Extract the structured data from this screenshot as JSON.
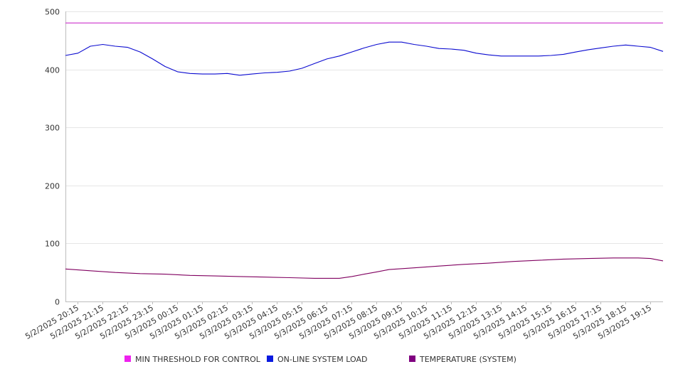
{
  "chart_data": {
    "type": "line",
    "title": "",
    "xlabel": "",
    "ylabel": "",
    "ylim": [
      0,
      500
    ],
    "y_ticks": [
      0,
      100,
      200,
      300,
      400,
      500
    ],
    "grid": "horizontal",
    "legend_position": "bottom",
    "x_tick_labels": [
      "5/2/2025 20:15",
      "5/2/2025 21:15",
      "5/2/2025 22:15",
      "5/2/2025 23:15",
      "5/3/2025 00:15",
      "5/3/2025 01:15",
      "5/3/2025 02:15",
      "5/3/2025 03:15",
      "5/3/2025 04:15",
      "5/3/2025 05:15",
      "5/3/2025 06:15",
      "5/3/2025 07:15",
      "5/3/2025 08:15",
      "5/3/2025 09:15",
      "5/3/2025 10:15",
      "5/3/2025 11:15",
      "5/3/2025 12:15",
      "5/3/2025 13:15",
      "5/3/2025 14:15",
      "5/3/2025 15:15",
      "5/3/2025 16:15",
      "5/3/2025 17:15",
      "5/3/2025 18:15",
      "5/3/2025 19:15"
    ],
    "x_range": [
      "5/2/2025 19:45",
      "5/3/2025 19:45"
    ],
    "series": [
      {
        "name": "MIN THRESHOLD FOR CONTROL",
        "color": "#cc33cc",
        "legend_color": "#ee22ee",
        "points": [
          [
            "5/2/2025 19:45",
            480
          ],
          [
            "5/3/2025 19:45",
            480
          ]
        ]
      },
      {
        "name": "ON-LINE SYSTEM LOAD",
        "color": "#0a0ad0",
        "legend_color": "#0a1ae0",
        "points": [
          [
            "5/2/2025 19:45",
            424
          ],
          [
            "5/2/2025 20:15",
            428
          ],
          [
            "5/2/2025 20:45",
            440
          ],
          [
            "5/2/2025 21:15",
            443
          ],
          [
            "5/2/2025 21:45",
            440
          ],
          [
            "5/2/2025 22:15",
            438
          ],
          [
            "5/2/2025 22:45",
            430
          ],
          [
            "5/2/2025 23:15",
            418
          ],
          [
            "5/2/2025 23:45",
            405
          ],
          [
            "5/3/2025 00:15",
            396
          ],
          [
            "5/3/2025 00:45",
            393
          ],
          [
            "5/3/2025 01:15",
            392
          ],
          [
            "5/3/2025 01:45",
            392
          ],
          [
            "5/3/2025 02:15",
            393
          ],
          [
            "5/3/2025 02:45",
            390
          ],
          [
            "5/3/2025 03:15",
            392
          ],
          [
            "5/3/2025 03:45",
            394
          ],
          [
            "5/3/2025 04:15",
            395
          ],
          [
            "5/3/2025 04:45",
            397
          ],
          [
            "5/3/2025 05:15",
            402
          ],
          [
            "5/3/2025 05:45",
            410
          ],
          [
            "5/3/2025 06:15",
            418
          ],
          [
            "5/3/2025 06:45",
            423
          ],
          [
            "5/3/2025 07:15",
            430
          ],
          [
            "5/3/2025 07:45",
            437
          ],
          [
            "5/3/2025 08:15",
            443
          ],
          [
            "5/3/2025 08:45",
            447
          ],
          [
            "5/3/2025 09:15",
            447
          ],
          [
            "5/3/2025 09:45",
            443
          ],
          [
            "5/3/2025 10:15",
            440
          ],
          [
            "5/3/2025 10:45",
            436
          ],
          [
            "5/3/2025 11:15",
            435
          ],
          [
            "5/3/2025 11:45",
            433
          ],
          [
            "5/3/2025 12:15",
            428
          ],
          [
            "5/3/2025 12:45",
            425
          ],
          [
            "5/3/2025 13:15",
            423
          ],
          [
            "5/3/2025 13:45",
            423
          ],
          [
            "5/3/2025 14:15",
            423
          ],
          [
            "5/3/2025 14:45",
            423
          ],
          [
            "5/3/2025 15:15",
            424
          ],
          [
            "5/3/2025 15:45",
            426
          ],
          [
            "5/3/2025 16:15",
            430
          ],
          [
            "5/3/2025 16:45",
            434
          ],
          [
            "5/3/2025 17:15",
            437
          ],
          [
            "5/3/2025 17:45",
            440
          ],
          [
            "5/3/2025 18:15",
            442
          ],
          [
            "5/3/2025 18:45",
            440
          ],
          [
            "5/3/2025 19:15",
            438
          ],
          [
            "5/3/2025 19:45",
            431
          ]
        ]
      },
      {
        "name": "TEMPERATURE (SYSTEM)",
        "color": "#800060",
        "legend_color": "#800080",
        "points": [
          [
            "5/2/2025 19:45",
            56
          ],
          [
            "5/2/2025 20:45",
            53
          ],
          [
            "5/2/2025 21:45",
            50
          ],
          [
            "5/2/2025 22:45",
            48
          ],
          [
            "5/2/2025 23:45",
            47
          ],
          [
            "5/3/2025 00:45",
            45
          ],
          [
            "5/3/2025 01:45",
            44
          ],
          [
            "5/3/2025 02:45",
            43
          ],
          [
            "5/3/2025 03:45",
            42
          ],
          [
            "5/3/2025 04:45",
            41
          ],
          [
            "5/3/2025 05:45",
            40
          ],
          [
            "5/3/2025 06:45",
            40
          ],
          [
            "5/3/2025 07:15",
            43
          ],
          [
            "5/3/2025 07:45",
            47
          ],
          [
            "5/3/2025 08:15",
            51
          ],
          [
            "5/3/2025 08:45",
            55
          ],
          [
            "5/3/2025 09:45",
            58
          ],
          [
            "5/3/2025 10:45",
            61
          ],
          [
            "5/3/2025 11:45",
            64
          ],
          [
            "5/3/2025 12:45",
            66
          ],
          [
            "5/3/2025 13:45",
            69
          ],
          [
            "5/3/2025 14:45",
            71
          ],
          [
            "5/3/2025 15:45",
            73
          ],
          [
            "5/3/2025 16:45",
            74
          ],
          [
            "5/3/2025 17:45",
            75
          ],
          [
            "5/3/2025 18:45",
            75
          ],
          [
            "5/3/2025 19:15",
            74
          ],
          [
            "5/3/2025 19:45",
            70
          ]
        ]
      }
    ]
  }
}
